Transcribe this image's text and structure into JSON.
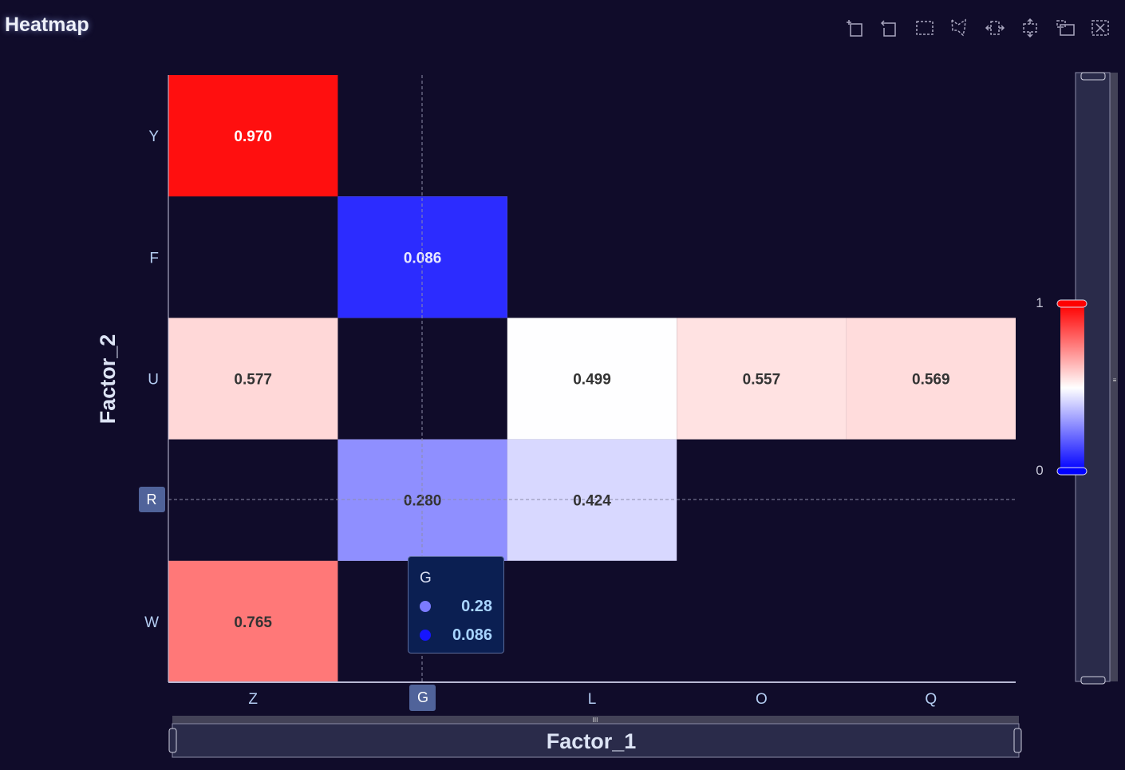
{
  "title": "Heatmap",
  "toolbar": [
    "zoom-icon",
    "zoom-reset-icon",
    "rect-select-icon",
    "polygon-select-icon",
    "line-x-select-icon",
    "line-y-select-icon",
    "keep-selection-icon",
    "clear-selection-icon"
  ],
  "tooltip": {
    "title": "G",
    "rows": [
      {
        "value": "0.28",
        "color": "#7b7bff"
      },
      {
        "value": "0.086",
        "color": "#1616ff"
      }
    ]
  },
  "axis_pointer": {
    "x_label": "G",
    "y_label": "R"
  },
  "chart_data": {
    "type": "heatmap",
    "title": "Heatmap",
    "xlabel": "Factor_1",
    "ylabel": "Factor_2",
    "x_categories": [
      "Z",
      "G",
      "L",
      "O",
      "Q"
    ],
    "y_categories": [
      "W",
      "R",
      "U",
      "F",
      "Y"
    ],
    "cells": [
      {
        "x": "Z",
        "y": "Y",
        "value": 0.97,
        "label": "0.970"
      },
      {
        "x": "G",
        "y": "F",
        "value": 0.086,
        "label": "0.086"
      },
      {
        "x": "Z",
        "y": "U",
        "value": 0.577,
        "label": "0.577"
      },
      {
        "x": "L",
        "y": "U",
        "value": 0.499,
        "label": "0.499"
      },
      {
        "x": "O",
        "y": "U",
        "value": 0.557,
        "label": "0.557"
      },
      {
        "x": "Q",
        "y": "U",
        "value": 0.569,
        "label": "0.569"
      },
      {
        "x": "G",
        "y": "R",
        "value": 0.28,
        "label": "0.280"
      },
      {
        "x": "L",
        "y": "R",
        "value": 0.424,
        "label": "0.424"
      },
      {
        "x": "Z",
        "y": "W",
        "value": 0.765,
        "label": "0.765"
      }
    ],
    "visual_map": {
      "min": 0,
      "max": 1,
      "min_label": "0",
      "max_label": "1",
      "colors": [
        "#0000ff",
        "#ffffff",
        "#ff0000"
      ]
    }
  }
}
